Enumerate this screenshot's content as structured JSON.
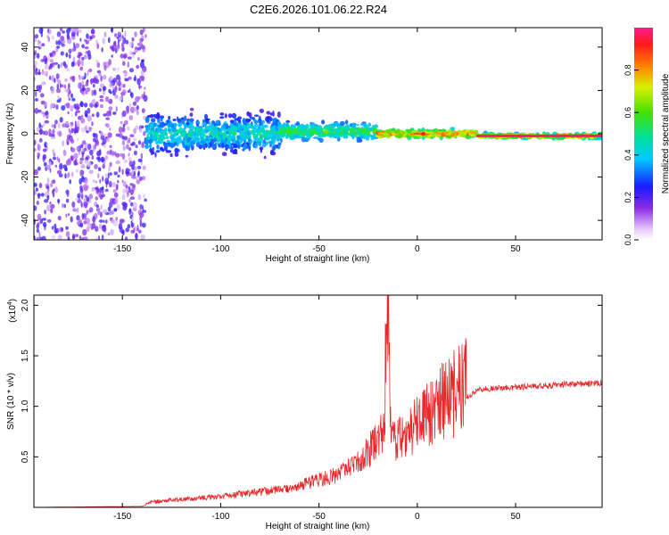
{
  "title": "C2E6.2026.101.06.22.R24",
  "chart_data": [
    {
      "type": "heatmap",
      "xlabel": "Height of straight line (km)",
      "ylabel": "Frequency (Hz)",
      "xlim": [
        -195,
        94
      ],
      "ylim": [
        -49,
        49
      ],
      "xticks": [
        -150,
        -100,
        -50,
        0,
        50
      ],
      "yticks": [
        -40,
        -20,
        0,
        20,
        40
      ],
      "colorbar": {
        "label": "Normalized spectral amplitude",
        "range": [
          0,
          1
        ],
        "ticks": [
          "0.0",
          "0.2",
          "0.4",
          "0.6",
          "0.8"
        ],
        "tick_values": [
          0.0,
          0.2,
          0.4,
          0.6,
          0.8
        ]
      },
      "regions": [
        {
          "x": [
            -195,
            -138
          ],
          "freq_center": 0,
          "freq_spread": 49,
          "amplitude": [
            0.05,
            0.25
          ],
          "pattern": "noise"
        },
        {
          "x": [
            -138,
            -70
          ],
          "freq_center": 0,
          "freq_spread": 12,
          "amplitude": [
            0.15,
            0.55
          ],
          "pattern": "broad"
        },
        {
          "x": [
            -70,
            -20
          ],
          "freq_center": 1,
          "freq_spread": 5,
          "amplitude": [
            0.25,
            0.65
          ],
          "pattern": "band"
        },
        {
          "x": [
            -20,
            30
          ],
          "freq_center": 0,
          "freq_spread": 2.5,
          "amplitude": [
            0.4,
            0.95
          ],
          "pattern": "line"
        },
        {
          "x": [
            30,
            94
          ],
          "freq_center": -1,
          "freq_spread": 1.5,
          "amplitude": [
            0.3,
            1.0
          ],
          "pattern": "line"
        }
      ]
    },
    {
      "type": "line",
      "xlabel": "Height of straight line (km)",
      "ylabel": "SNR (10 * v/v)",
      "yscale_label": "(x10",
      "yscale_exp": "4",
      "yscale_close": ")",
      "xlim": [
        -195,
        94
      ],
      "ylim": [
        0,
        2.1
      ],
      "xticks": [
        -150,
        -100,
        -50,
        0,
        50
      ],
      "yticks": [
        0.5,
        1.0,
        1.5,
        2.0
      ],
      "ytick_labels": [
        "0.5",
        "1.0",
        "1.5",
        "2.0"
      ],
      "color": "#e8282b",
      "series": [
        {
          "x": [
            -195,
            -140,
            -135,
            -120,
            -100,
            -90,
            -80,
            -70,
            -60,
            -50,
            -40,
            -30,
            -25,
            -20,
            -17,
            -15,
            -14,
            -12,
            -5,
            0,
            10,
            20,
            30,
            40,
            50,
            60,
            70,
            80,
            94
          ],
          "values": [
            0.0,
            0.01,
            0.05,
            0.07,
            0.1,
            0.12,
            0.14,
            0.16,
            0.2,
            0.25,
            0.3,
            0.4,
            0.5,
            0.6,
            0.7,
            1.9,
            0.85,
            0.6,
            0.65,
            0.75,
            0.9,
            1.0,
            1.15,
            1.17,
            1.18,
            1.19,
            1.2,
            1.21,
            1.22
          ]
        }
      ]
    }
  ]
}
